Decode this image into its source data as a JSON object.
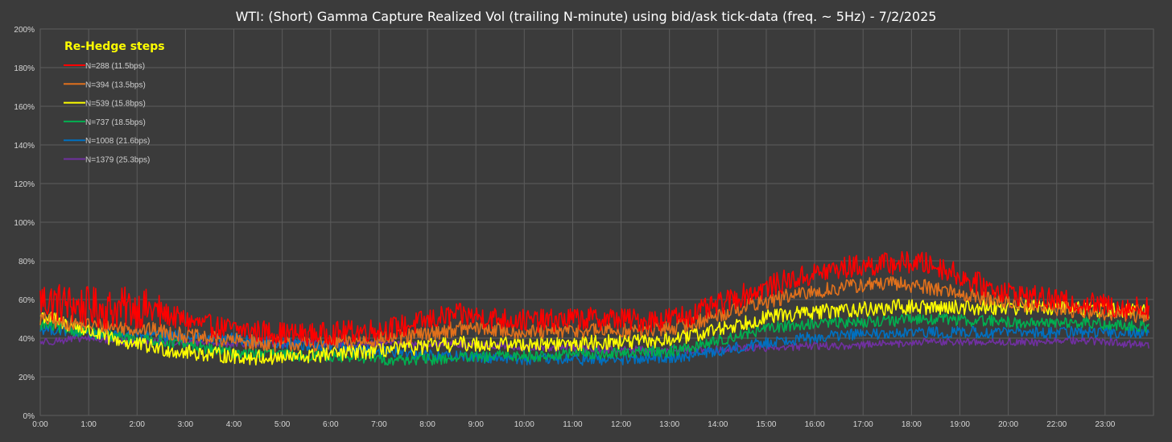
{
  "chart_data": {
    "type": "line",
    "title": "WTI: (Short) Gamma Capture Realized Vol (trailing N-minute) using bid/ask tick-data (freq. ~ 5Hz) - 7/2/2025",
    "xlabel": "",
    "ylabel": "",
    "x_ticks": [
      "0:00",
      "1:00",
      "2:00",
      "3:00",
      "4:00",
      "5:00",
      "6:00",
      "7:00",
      "8:00",
      "9:00",
      "10:00",
      "11:00",
      "12:00",
      "13:00",
      "14:00",
      "15:00",
      "16:00",
      "17:00",
      "18:00",
      "19:00",
      "20:00",
      "22:00",
      "23:00"
    ],
    "y_ticks": [
      "0%",
      "20%",
      "40%",
      "60%",
      "80%",
      "100%",
      "120%",
      "140%",
      "160%",
      "180%",
      "200%"
    ],
    "xlim_hours": [
      0,
      24
    ],
    "ylim_percent": [
      0,
      200
    ],
    "grid": true,
    "legend_title": "Re-Hedge steps",
    "legend_position": "top-left",
    "x_hours": [
      0,
      0.5,
      1,
      1.5,
      2,
      2.5,
      3,
      3.5,
      4,
      4.5,
      5,
      5.5,
      6,
      6.5,
      7,
      7.5,
      8,
      8.5,
      9,
      9.5,
      10,
      10.5,
      11,
      11.5,
      12,
      12.5,
      13,
      13.5,
      14,
      14.5,
      15,
      15.5,
      16,
      16.5,
      17,
      17.5,
      18,
      18.5,
      19,
      19.5,
      20,
      20.5,
      21,
      21.5,
      22,
      22.5,
      23,
      23.5,
      23.9
    ],
    "series": [
      {
        "name": "N=288 (11.5bps)",
        "color": "#ff0000",
        "noise": 6,
        "values": [
          60,
          58,
          56,
          55,
          56,
          54,
          50,
          47,
          45,
          44,
          43,
          42,
          42,
          43,
          44,
          45,
          47,
          50,
          52,
          51,
          50,
          49,
          49,
          50,
          50,
          50,
          49,
          50,
          52,
          56,
          61,
          65,
          69,
          72,
          75,
          77,
          78,
          79,
          79,
          76,
          70,
          66,
          63,
          61,
          59,
          58,
          57,
          56,
          56
        ]
      },
      {
        "name": "N=394 (13.5bps)",
        "color": "#e0701c",
        "noise": 4,
        "values": [
          50,
          48,
          47,
          46,
          45,
          44,
          42,
          40,
          39,
          38,
          37,
          37,
          37,
          38,
          39,
          40,
          41,
          43,
          45,
          45,
          44,
          43,
          43,
          44,
          44,
          44,
          44,
          45,
          47,
          51,
          55,
          58,
          61,
          63,
          65,
          67,
          68,
          68,
          67,
          65,
          62,
          60,
          58,
          56,
          55,
          54,
          53,
          52,
          52
        ]
      },
      {
        "name": "N=539 (15.8bps)",
        "color": "#ffff00",
        "noise": 4,
        "values": [
          52,
          48,
          44,
          40,
          37,
          35,
          33,
          32,
          31,
          30,
          30,
          30,
          31,
          32,
          33,
          34,
          35,
          36,
          37,
          37,
          37,
          37,
          37,
          37,
          38,
          38,
          38,
          39,
          41,
          44,
          47,
          50,
          52,
          53,
          54,
          55,
          55,
          56,
          56,
          56,
          56,
          56,
          56,
          56,
          56,
          55,
          55,
          54,
          54
        ]
      },
      {
        "name": "N=737 (18.5bps)",
        "color": "#00b050",
        "noise": 3,
        "values": [
          47,
          45,
          43,
          41,
          40,
          39,
          37,
          35,
          33,
          32,
          32,
          31,
          31,
          30,
          30,
          29,
          29,
          29,
          30,
          30,
          31,
          31,
          31,
          32,
          32,
          32,
          33,
          33,
          35,
          38,
          41,
          44,
          46,
          47,
          48,
          48,
          49,
          49,
          50,
          50,
          49,
          49,
          48,
          48,
          48,
          48,
          47,
          46,
          46
        ]
      },
      {
        "name": "N=1008 (21.6bps)",
        "color": "#0070c0",
        "noise": 3,
        "values": [
          45,
          44,
          43,
          42,
          42,
          41,
          41,
          40,
          40,
          39,
          38,
          37,
          36,
          35,
          34,
          33,
          32,
          31,
          31,
          30,
          30,
          29,
          29,
          29,
          29,
          29,
          29,
          30,
          31,
          33,
          35,
          37,
          39,
          40,
          41,
          42,
          42,
          42,
          43,
          43,
          43,
          43,
          43,
          43,
          43,
          43,
          43,
          43,
          43
        ]
      },
      {
        "name": "N=1379 (25.3bps)",
        "color": "#7030a0",
        "noise": 2,
        "values": [
          38,
          39,
          40,
          39,
          38,
          38,
          38,
          38,
          37,
          37,
          37,
          37,
          37,
          37,
          37,
          37,
          37,
          37,
          37,
          36,
          36,
          35,
          35,
          35,
          34,
          34,
          34,
          34,
          34,
          34,
          35,
          35,
          35,
          36,
          36,
          36,
          37,
          37,
          38,
          38,
          38,
          38,
          38,
          38,
          39,
          39,
          38,
          37,
          36
        ]
      }
    ]
  }
}
